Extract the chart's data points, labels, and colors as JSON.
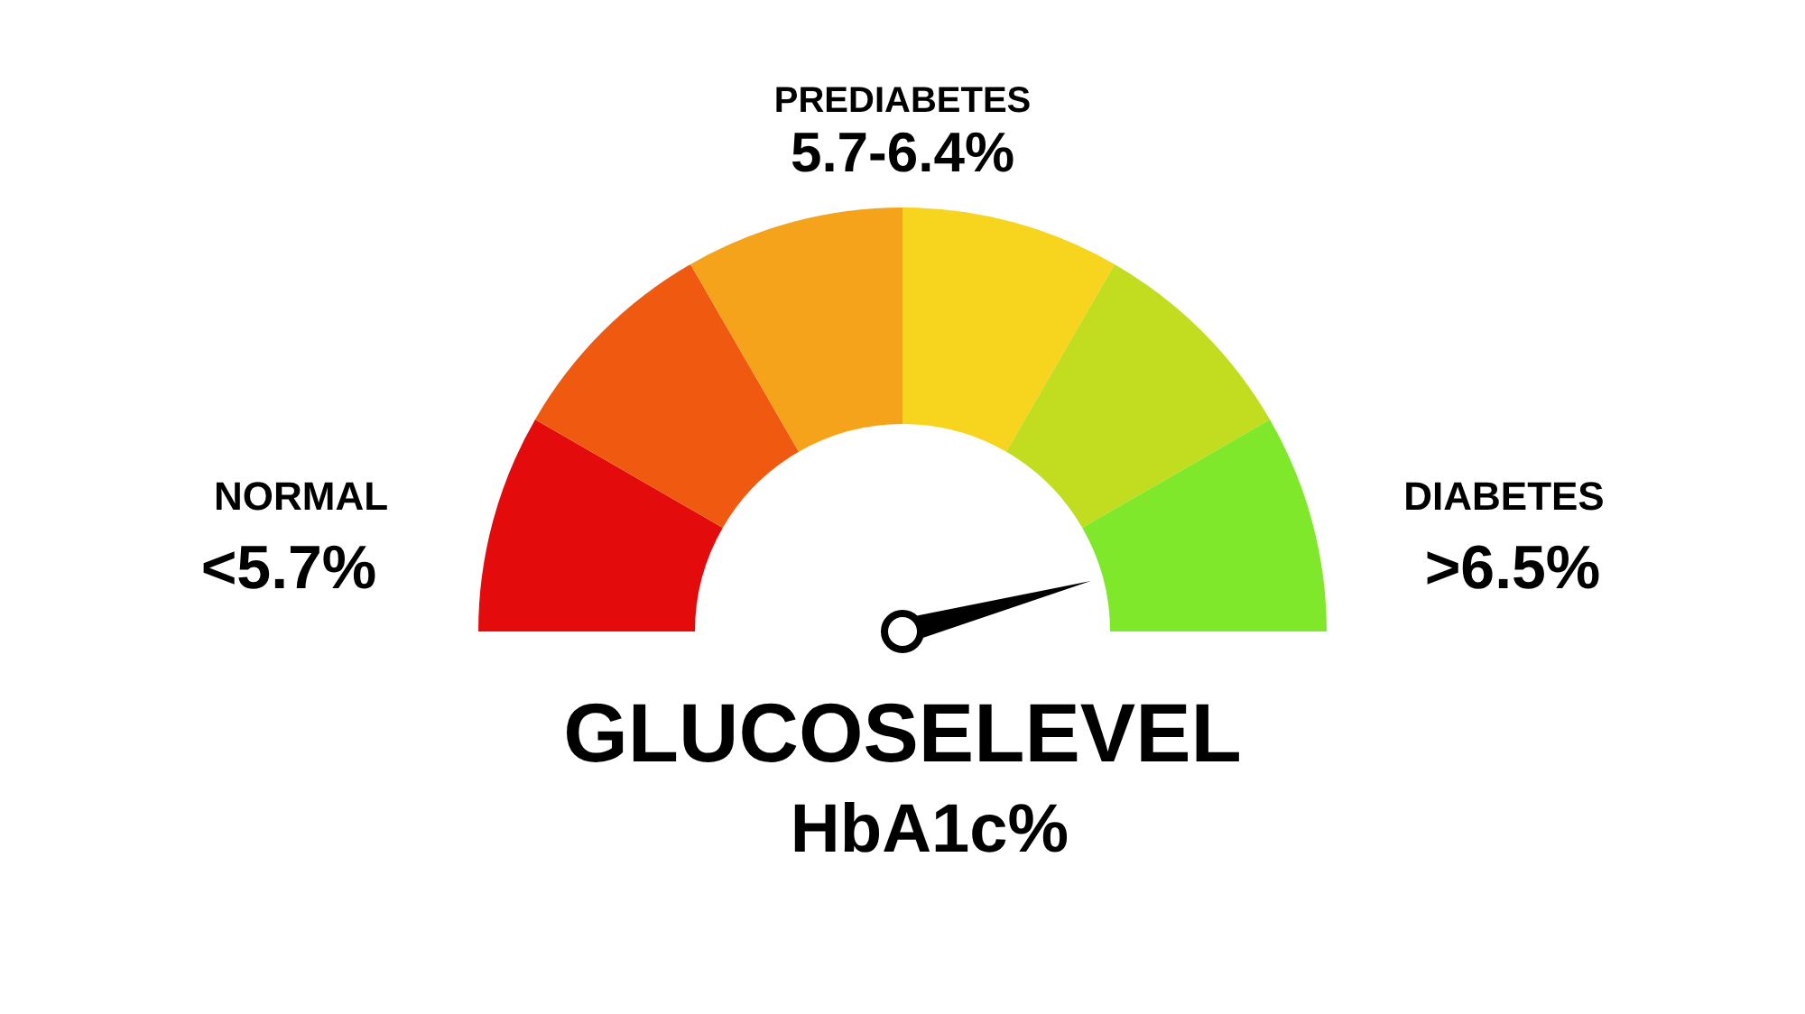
{
  "chart_data": {
    "type": "donut",
    "title": "GLUCOSELEVEL",
    "subtitle": "HbA1c%",
    "categories": [
      "NORMAL",
      null,
      null,
      null,
      null,
      "DIABETES"
    ],
    "values": [
      16.67,
      16.67,
      16.66,
      16.67,
      16.67,
      16.66
    ],
    "colors": [
      "#e30b0b",
      "#f05a10",
      "#f5a31a",
      "#f7d41d",
      "#c2dc1f",
      "#7fe82a"
    ],
    "needle": "DIABETES",
    "annotations": [
      "PREDIABETES",
      "5.7-6.4%",
      "<5.7%",
      ">6.5%"
    ]
  }
}
